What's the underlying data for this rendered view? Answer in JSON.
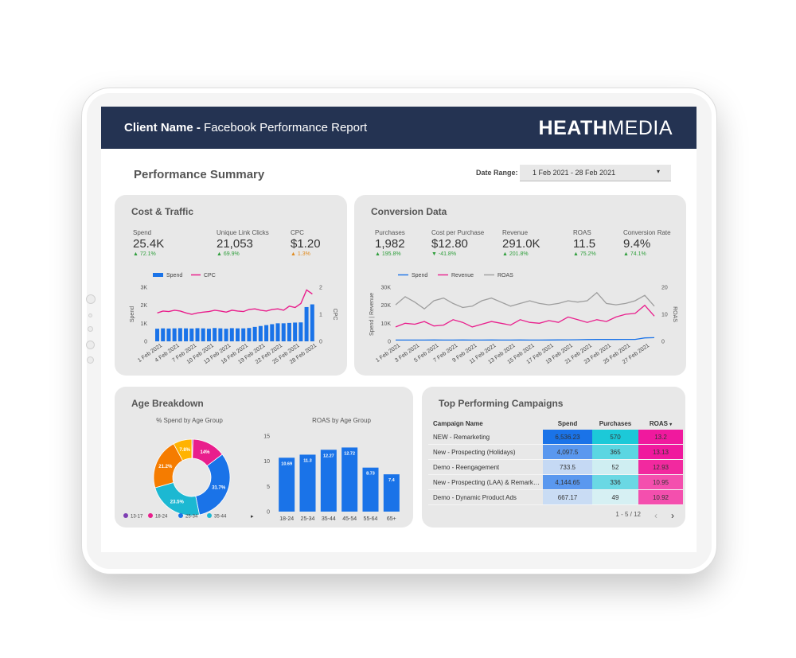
{
  "header": {
    "client_bold": "Client Name -",
    "report_title": "Facebook Performance Report",
    "logo_bold": "HEATH",
    "logo_light": "MEDIA"
  },
  "summary": {
    "title": "Performance Summary",
    "date_label": "Date Range:",
    "date_value": "1 Feb 2021 - 28 Feb 2021",
    "dropdown_arrow": "▾"
  },
  "cost_traffic": {
    "title": "Cost & Traffic",
    "kpis": [
      {
        "label": "Spend",
        "value": "25.4K",
        "delta": "72.1%"
      },
      {
        "label": "Unique Link Clicks",
        "value": "21,053",
        "delta": "69.9%"
      },
      {
        "label": "CPC",
        "value": "$1.20",
        "delta": "1.3%"
      }
    ]
  },
  "conversion": {
    "title": "Conversion Data",
    "kpis": [
      {
        "label": "Purchases",
        "value": "1,982",
        "delta": "195.8%"
      },
      {
        "label": "Cost per Purchase",
        "value": "$12.80",
        "delta": "-41.8%"
      },
      {
        "label": "Revenue",
        "value": "291.0K",
        "delta": "201.8%"
      },
      {
        "label": "ROAS",
        "value": "11.5",
        "delta": "75.2%"
      },
      {
        "label": "Conversion Rate",
        "value": "9.4%",
        "delta": "74.1%"
      }
    ]
  },
  "age": {
    "title": "Age Breakdown"
  },
  "campaigns": {
    "title": "Top Performing Campaigns",
    "columns": [
      "Campaign Name",
      "Spend",
      "Purchases",
      "ROAS"
    ],
    "sort_icon": "▾",
    "rows": [
      {
        "name": "NEW - Remarketing",
        "spend": "6,536.23",
        "purchases": "570",
        "roas": "13.2"
      },
      {
        "name": "New - Prospecting (Holidays)",
        "spend": "4,097.5",
        "purchases": "365",
        "roas": "13.13"
      },
      {
        "name": "Demo - Reengagement",
        "spend": "733.5",
        "purchases": "52",
        "roas": "12.93"
      },
      {
        "name": "New - Prospecting (LAA) & Remarketing",
        "spend": "4,144.65",
        "purchases": "336",
        "roas": "10.95"
      },
      {
        "name": "Demo - Dynamic Product Ads",
        "spend": "667.17",
        "purchases": "49",
        "roas": "10.92"
      }
    ],
    "pager": "1 - 5 / 12",
    "prev": "‹",
    "next": "›"
  },
  "colors": {
    "header": "#243352",
    "spend_blue": "#1a73e8",
    "revenue_pink": "#e91e8c",
    "roas_gray": "#9e9e9e",
    "up_green": "#2e9e3b",
    "down_orange": "#e08a1e"
  },
  "chart_data": [
    {
      "id": "cost_traffic_chart",
      "type": "bar",
      "legend": [
        "Spend",
        "CPC"
      ],
      "legend_position": "top",
      "xlabel": "",
      "ylabel": "Spend",
      "y2label": "CPC",
      "ylim": [
        0,
        3000
      ],
      "y_ticks": [
        "0",
        "1K",
        "2K",
        "3K"
      ],
      "y2lim": [
        0,
        2
      ],
      "y2_ticks": [
        "0",
        "1",
        "2"
      ],
      "x_tick_labels": [
        "1 Feb 2021",
        "4 Feb 2021",
        "7 Feb 2021",
        "10 Feb 2021",
        "13 Feb 2021",
        "16 Feb 2021",
        "19 Feb 2021",
        "22 Feb 2021",
        "25 Feb 2021",
        "28 Feb 2021"
      ],
      "series": [
        {
          "name": "Spend",
          "type": "bar",
          "values": [
            700,
            720,
            710,
            720,
            730,
            720,
            710,
            730,
            720,
            700,
            740,
            720,
            700,
            730,
            720,
            720,
            740,
            800,
            850,
            900,
            950,
            1000,
            1000,
            1020,
            1040,
            1050,
            1900,
            2050
          ]
        },
        {
          "name": "CPC",
          "type": "line",
          "values": [
            1.05,
            1.12,
            1.1,
            1.15,
            1.12,
            1.05,
            1.0,
            1.05,
            1.08,
            1.1,
            1.15,
            1.12,
            1.08,
            1.15,
            1.12,
            1.1,
            1.18,
            1.2,
            1.15,
            1.12,
            1.18,
            1.2,
            1.15,
            1.3,
            1.25,
            1.4,
            1.9,
            1.75
          ]
        }
      ]
    },
    {
      "id": "conversion_chart",
      "type": "line",
      "legend": [
        "Spend",
        "Revenue",
        "ROAS"
      ],
      "legend_position": "top",
      "xlabel": "",
      "ylabel": "Spend | Revenue",
      "y2label": "ROAS",
      "ylim": [
        0,
        30000
      ],
      "y_ticks": [
        "0",
        "10K",
        "20K",
        "30K"
      ],
      "y2lim": [
        0,
        20
      ],
      "y2_ticks": [
        "0",
        "10",
        "20"
      ],
      "x_tick_labels": [
        "1 Feb 2021",
        "3 Feb 2021",
        "5 Feb 2021",
        "7 Feb 2021",
        "9 Feb 2021",
        "11 Feb 2021",
        "13 Feb 2021",
        "15 Feb 2021",
        "17 Feb 2021",
        "19 Feb 2021",
        "21 Feb 2021",
        "23 Feb 2021",
        "25 Feb 2021",
        "27 Feb 2021"
      ],
      "series": [
        {
          "name": "Spend",
          "values": [
            700,
            720,
            710,
            720,
            730,
            720,
            710,
            730,
            720,
            700,
            740,
            720,
            700,
            730,
            720,
            720,
            740,
            800,
            850,
            900,
            950,
            1000,
            1000,
            1020,
            1040,
            1050,
            1900,
            2050
          ]
        },
        {
          "name": "Revenue",
          "values": [
            8000,
            10000,
            9500,
            11000,
            8500,
            9000,
            12000,
            10500,
            8000,
            9500,
            11000,
            10000,
            9000,
            12000,
            10500,
            10000,
            11500,
            10500,
            13500,
            12000,
            10500,
            12000,
            11000,
            13500,
            15000,
            15500,
            20000,
            14000
          ]
        },
        {
          "name": "ROAS",
          "values": [
            13.5,
            16.5,
            14.5,
            12,
            15,
            16,
            14,
            12.5,
            13,
            15,
            16,
            14.5,
            13,
            14,
            15,
            14,
            13.5,
            14,
            15,
            14.5,
            15,
            18,
            14,
            13.5,
            14,
            15,
            17,
            13
          ]
        }
      ]
    },
    {
      "id": "spend_by_age",
      "type": "pie",
      "title": "% Spend by Age Group",
      "legend_position": "bottom",
      "labels": [
        "13-17",
        "18-24",
        "25-34",
        "35-44",
        "45-54",
        "55-64"
      ],
      "values": [
        0.5,
        14,
        31.7,
        23.5,
        21.2,
        7.8
      ],
      "slice_labels": [
        "",
        "14%",
        "31.7%",
        "23.5%",
        "21.2%",
        "7.8%"
      ],
      "colors": [
        "#7e3fb3",
        "#e91e8c",
        "#1a73e8",
        "#1cb8d2",
        "#f57c00",
        "#ffb300"
      ]
    },
    {
      "id": "roas_by_age",
      "type": "bar",
      "title": "ROAS by Age Group",
      "categories": [
        "18-24",
        "25-34",
        "35-44",
        "45-54",
        "55-64",
        "65+"
      ],
      "values": [
        10.69,
        11.3,
        12.27,
        12.72,
        8.73,
        7.4
      ],
      "ylim": [
        0,
        15
      ],
      "y_ticks": [
        "0",
        "5",
        "10",
        "15"
      ]
    }
  ]
}
